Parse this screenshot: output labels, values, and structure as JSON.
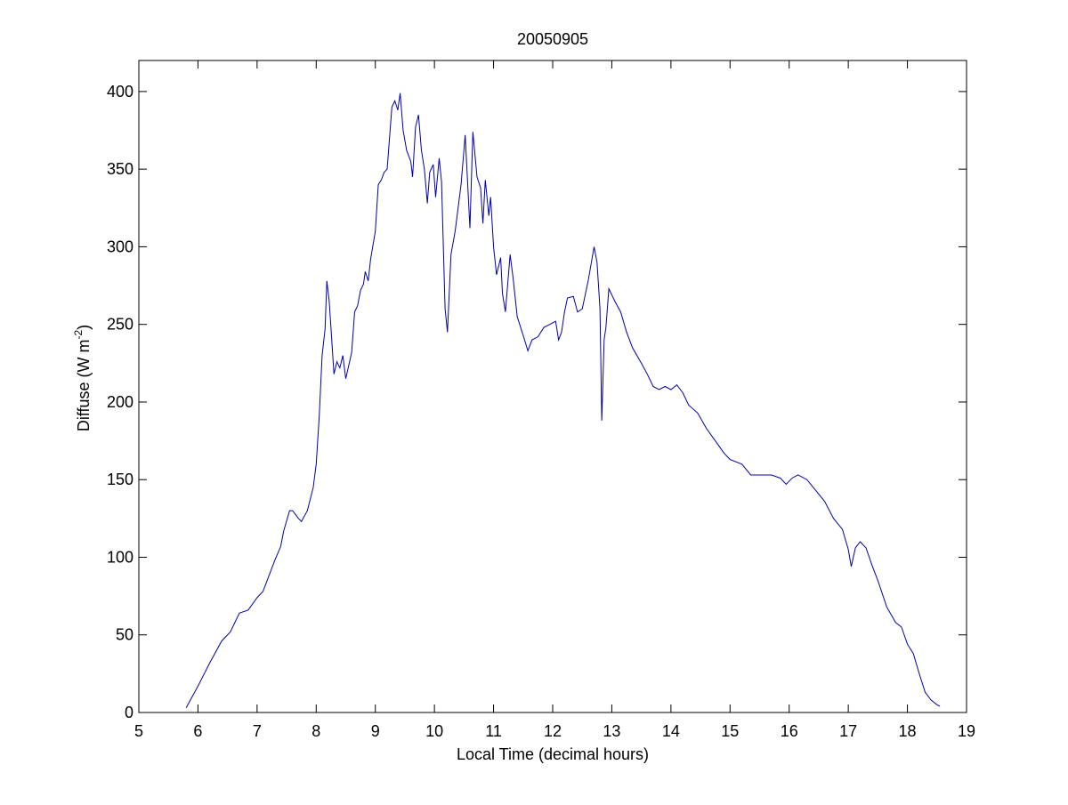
{
  "chart_data": {
    "type": "line",
    "title": "20050905",
    "xlabel": "Local Time (decimal hours)",
    "ylabel": {
      "text": "Diffuse (W m",
      "sup": "-2",
      "tail": ")"
    },
    "color": "#0000aa",
    "xlim": [
      5,
      19
    ],
    "xticks": [
      5,
      6,
      7,
      8,
      9,
      10,
      11,
      12,
      13,
      14,
      15,
      16,
      17,
      18,
      19
    ],
    "ylim": [
      0,
      420
    ],
    "yticks": [
      0,
      50,
      100,
      150,
      200,
      250,
      300,
      350,
      400
    ],
    "x": [
      5.8,
      6.0,
      6.2,
      6.4,
      6.55,
      6.7,
      6.85,
      7.0,
      7.1,
      7.2,
      7.3,
      7.4,
      7.45,
      7.55,
      7.6,
      7.7,
      7.75,
      7.85,
      7.95,
      8.0,
      8.05,
      8.1,
      8.15,
      8.18,
      8.22,
      8.28,
      8.3,
      8.35,
      8.4,
      8.45,
      8.5,
      8.6,
      8.65,
      8.7,
      8.75,
      8.8,
      8.83,
      8.88,
      8.92,
      9.0,
      9.05,
      9.1,
      9.15,
      9.2,
      9.28,
      9.33,
      9.38,
      9.42,
      9.47,
      9.53,
      9.6,
      9.63,
      9.68,
      9.73,
      9.78,
      9.83,
      9.88,
      9.92,
      9.98,
      10.02,
      10.08,
      10.12,
      10.18,
      10.22,
      10.28,
      10.35,
      10.45,
      10.52,
      10.6,
      10.65,
      10.72,
      10.78,
      10.82,
      10.86,
      10.92,
      10.95,
      11.0,
      11.05,
      11.12,
      11.15,
      11.2,
      11.28,
      11.33,
      11.4,
      11.5,
      11.58,
      11.65,
      11.75,
      11.85,
      11.95,
      12.05,
      12.1,
      12.15,
      12.2,
      12.25,
      12.35,
      12.42,
      12.5,
      12.6,
      12.7,
      12.75,
      12.8,
      12.83,
      12.87,
      12.9,
      12.95,
      13.05,
      13.15,
      13.25,
      13.35,
      13.5,
      13.6,
      13.7,
      13.8,
      13.9,
      14.0,
      14.1,
      14.2,
      14.3,
      14.45,
      14.6,
      14.75,
      14.9,
      15.0,
      15.2,
      15.35,
      15.5,
      15.7,
      15.85,
      15.95,
      16.05,
      16.15,
      16.3,
      16.45,
      16.6,
      16.75,
      16.9,
      17.0,
      17.05,
      17.12,
      17.2,
      17.3,
      17.4,
      17.5,
      17.65,
      17.8,
      17.9,
      18.0,
      18.1,
      18.2,
      18.3,
      18.4,
      18.5,
      18.55
    ],
    "values": [
      3,
      17,
      32,
      46,
      52,
      64,
      66,
      74,
      78,
      88,
      98,
      107,
      117,
      130,
      130,
      125,
      123,
      130,
      145,
      160,
      190,
      230,
      247,
      278,
      265,
      230,
      218,
      226,
      222,
      230,
      215,
      232,
      258,
      262,
      272,
      276,
      284,
      278,
      292,
      310,
      340,
      343,
      348,
      350,
      390,
      394,
      388,
      399,
      375,
      362,
      355,
      345,
      377,
      385,
      362,
      350,
      328,
      348,
      353,
      332,
      357,
      342,
      260,
      245,
      295,
      310,
      340,
      372,
      312,
      374,
      345,
      338,
      315,
      343,
      320,
      332,
      300,
      282,
      293,
      270,
      258,
      295,
      280,
      255,
      243,
      233,
      240,
      242,
      248,
      250,
      252,
      240,
      245,
      258,
      267,
      268,
      258,
      260,
      278,
      300,
      290,
      260,
      188,
      240,
      248,
      273,
      265,
      258,
      245,
      235,
      225,
      218,
      210,
      208,
      210,
      208,
      211,
      206,
      198,
      193,
      183,
      175,
      167,
      163,
      160,
      153,
      153,
      153,
      151,
      147,
      151,
      153,
      150,
      143,
      136,
      125,
      118,
      105,
      94,
      106,
      110,
      106,
      95,
      85,
      68,
      58,
      55,
      44,
      38,
      25,
      13,
      8,
      5,
      4
    ]
  }
}
